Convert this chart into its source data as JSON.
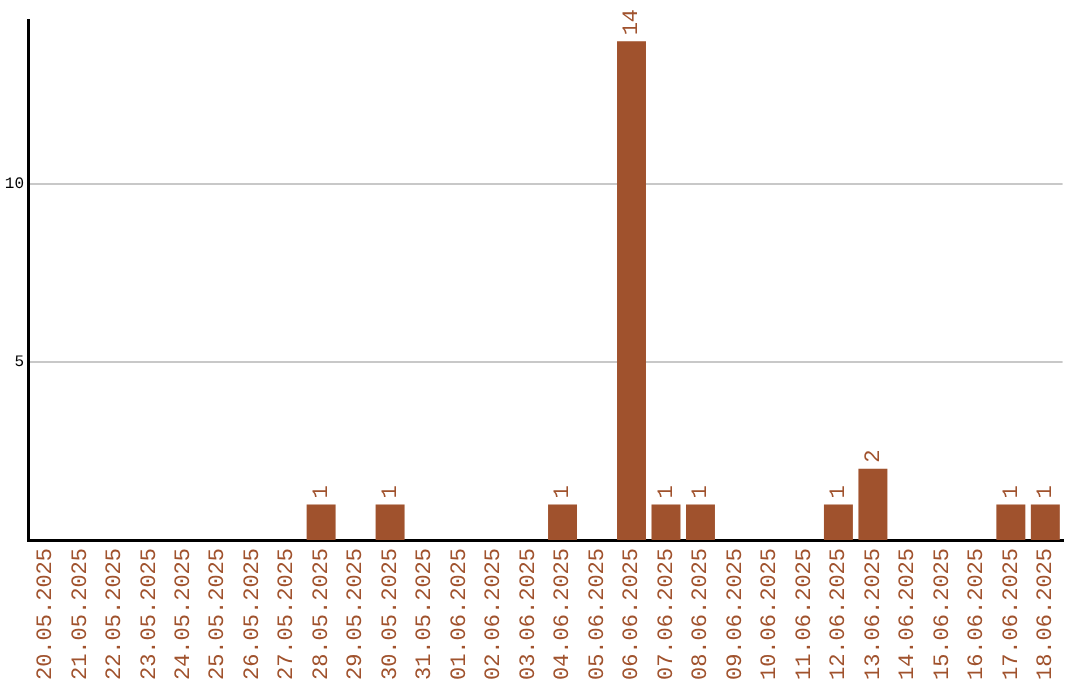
{
  "chart_data": {
    "type": "bar",
    "categories": [
      "20.05.2025",
      "21.05.2025",
      "22.05.2025",
      "23.05.2025",
      "24.05.2025",
      "25.05.2025",
      "26.05.2025",
      "27.05.2025",
      "28.05.2025",
      "29.05.2025",
      "30.05.2025",
      "31.05.2025",
      "01.06.2025",
      "02.06.2025",
      "03.06.2025",
      "04.06.2025",
      "05.06.2025",
      "06.06.2025",
      "07.06.2025",
      "08.06.2025",
      "09.06.2025",
      "10.06.2025",
      "11.06.2025",
      "12.06.2025",
      "13.06.2025",
      "14.06.2025",
      "15.06.2025",
      "16.06.2025",
      "17.06.2025",
      "18.06.2025"
    ],
    "values": [
      0,
      0,
      0,
      0,
      0,
      0,
      0,
      0,
      1,
      0,
      1,
      0,
      0,
      0,
      0,
      1,
      0,
      14,
      1,
      1,
      0,
      0,
      0,
      1,
      2,
      0,
      0,
      0,
      1,
      1
    ],
    "value_labels": [
      null,
      null,
      null,
      null,
      null,
      null,
      null,
      null,
      "1",
      null,
      "1",
      null,
      null,
      null,
      null,
      "1",
      null,
      "14",
      "1",
      "1",
      null,
      null,
      null,
      "1",
      "2",
      null,
      null,
      null,
      "1",
      "1"
    ],
    "color": "#a0522d",
    "ylim": [
      0,
      14.6
    ],
    "yticks": [
      5,
      10
    ],
    "grid": "y",
    "legend": false
  }
}
